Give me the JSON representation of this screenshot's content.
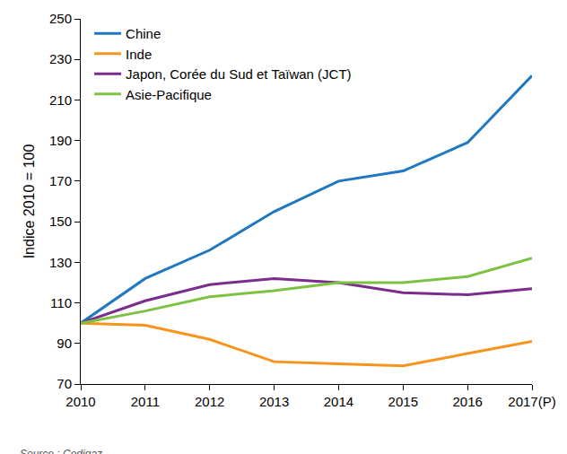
{
  "chart_data": {
    "type": "line",
    "y_label": "Indice 2010 = 100",
    "categories": [
      "2010",
      "2011",
      "2012",
      "2013",
      "2014",
      "2015",
      "2016",
      "2017(P)"
    ],
    "series": [
      {
        "name": "Chine",
        "color": "#1f78c1",
        "values": [
          100,
          122,
          136,
          155,
          170,
          175,
          189,
          222
        ]
      },
      {
        "name": "Inde",
        "color": "#f7941d",
        "values": [
          100,
          99,
          92,
          81,
          80,
          79,
          85,
          91
        ]
      },
      {
        "name": "Japon, Corée du Sud et Taïwan (JCT)",
        "color": "#7b2d8e",
        "values": [
          100,
          111,
          119,
          122,
          120,
          115,
          114,
          117
        ]
      },
      {
        "name": "Asie-Pacifique",
        "color": "#7dc242",
        "values": [
          100,
          106,
          113,
          116,
          120,
          120,
          123,
          132
        ]
      }
    ],
    "ylim": [
      70,
      250
    ],
    "yticks": [
      70,
      90,
      110,
      130,
      150,
      170,
      190,
      210,
      230,
      250
    ],
    "grid": false,
    "legend": "upper left",
    "annotations": [
      {
        "text": "Source : Cedigaz"
      }
    ]
  }
}
